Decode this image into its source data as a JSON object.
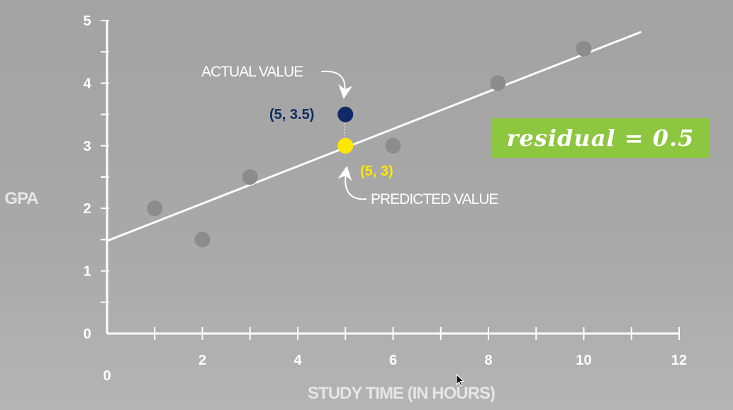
{
  "chart_data": {
    "type": "scatter",
    "xlabel": "STUDY TIME (IN HOURS)",
    "ylabel": "GPA",
    "xlim": [
      0,
      12
    ],
    "ylim": [
      0,
      5
    ],
    "x_ticks": [
      "0",
      "2",
      "4",
      "6",
      "8",
      "10",
      "12"
    ],
    "y_ticks": [
      "0",
      "1",
      "2",
      "3",
      "4",
      "5"
    ],
    "grid": false,
    "points": [
      {
        "x": 1,
        "y": 2
      },
      {
        "x": 2,
        "y": 1.5
      },
      {
        "x": 3,
        "y": 2.5
      },
      {
        "x": 6,
        "y": 3
      },
      {
        "x": 8.2,
        "y": 4
      },
      {
        "x": 10,
        "y": 4.55
      }
    ],
    "regression_line": {
      "intercept": 1.48,
      "slope": 0.298,
      "x_start": 0,
      "x_end": 11.2
    },
    "actual_point": {
      "x": 5,
      "y": 3.5,
      "label": "(5, 3.5)",
      "annotation": "ACTUAL VALUE"
    },
    "predicted_point": {
      "x": 5,
      "y": 3,
      "label": "(5, 3)",
      "annotation": "PREDICTED VALUE"
    },
    "residual_label": "residual = 0.5"
  },
  "colors": {
    "data_point": "#8c8c8c",
    "line": "#ffffff",
    "actual": "#0f2a66",
    "predicted": "#ffe800",
    "badge": "#8dc63f"
  }
}
